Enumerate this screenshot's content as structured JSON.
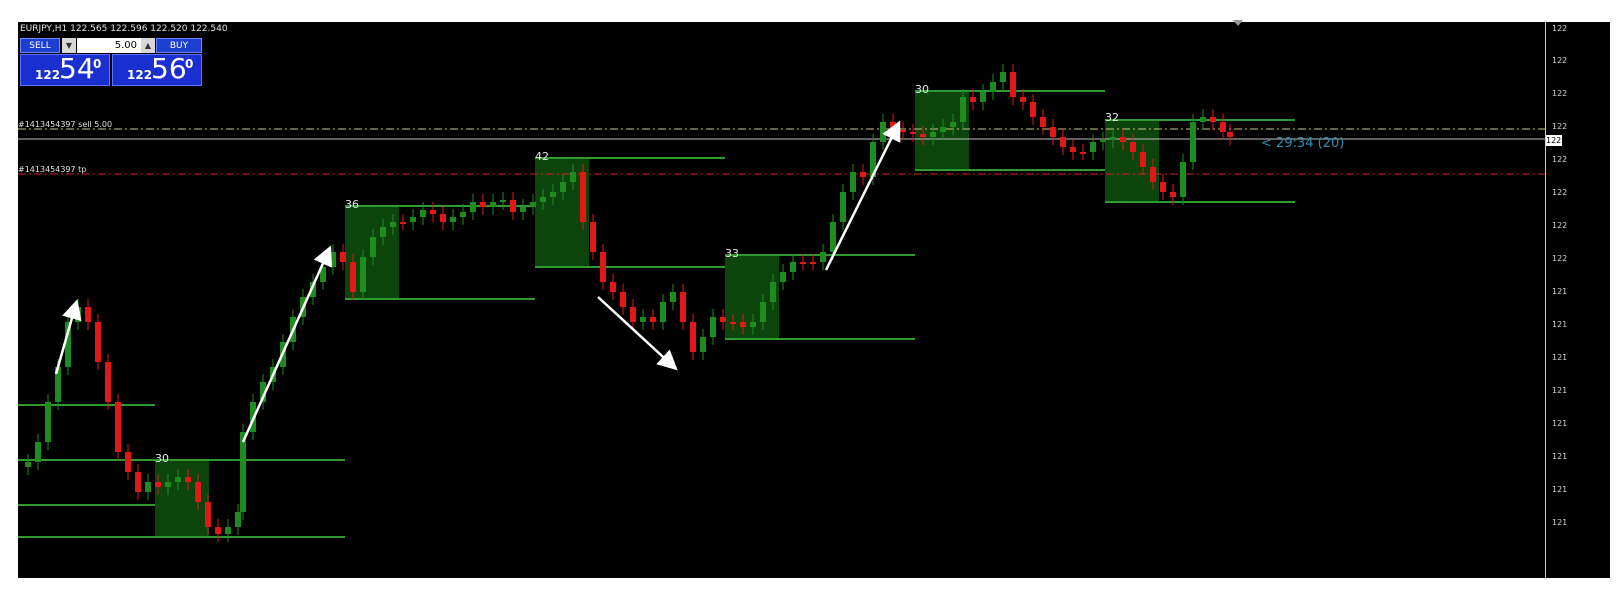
{
  "header": {
    "symbol_info": "EURJPY,H1  122.565 122.596 122.520 122.540"
  },
  "trade_panel": {
    "sell_label": "SELL",
    "buy_label": "BUY",
    "lot_value": "5.00",
    "lot_down_icon": "▼",
    "lot_up_icon": "▲",
    "sell_price_small": "122",
    "sell_price_big": "54",
    "sell_price_sup": "0",
    "buy_price_small": "122",
    "buy_price_big": "56",
    "buy_price_sup": "0"
  },
  "orders": {
    "sell_label": "#1413454397 sell 5.00",
    "tp_label": "#1413454397 tp"
  },
  "timer": "< 29:34 (20)",
  "boxes": [
    {
      "label": "30"
    },
    {
      "label": "36"
    },
    {
      "label": "42"
    },
    {
      "label": "33"
    },
    {
      "label": "30"
    },
    {
      "label": "32"
    }
  ],
  "price_scale": {
    "ticks": [
      "122",
      "122",
      "122",
      "122",
      "122",
      "122",
      "122",
      "122",
      "121",
      "121",
      "121",
      "121",
      "121",
      "121",
      "121",
      "121"
    ],
    "bid_tag": "122"
  },
  "colors": {
    "background": "#000000",
    "bull_candle": "#1e8c1e",
    "bear_candle": "#e01818",
    "box_fill": "#0d4d0d",
    "box_line": "#2f9a2f",
    "sell_line": "#c8c880",
    "tp_line": "#d02020",
    "arrow": "#ffffff"
  }
}
